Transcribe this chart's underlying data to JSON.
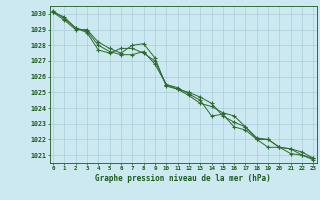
{
  "x": [
    0,
    1,
    2,
    3,
    4,
    5,
    6,
    7,
    8,
    9,
    10,
    11,
    12,
    13,
    14,
    15,
    16,
    17,
    18,
    19,
    20,
    21,
    22,
    23
  ],
  "series1": [
    1030.1,
    1029.8,
    1029.1,
    1028.8,
    1027.7,
    1027.5,
    1027.8,
    1027.8,
    1027.5,
    1027.0,
    1025.5,
    1025.2,
    1025.0,
    1024.7,
    1024.3,
    1023.5,
    1023.1,
    1022.8,
    1022.0,
    1022.0,
    1021.5,
    1021.4,
    1021.2,
    1020.8
  ],
  "series2": [
    1030.2,
    1029.7,
    1029.1,
    1028.9,
    1028.0,
    1027.6,
    1027.4,
    1027.4,
    1027.6,
    1026.8,
    1025.5,
    1025.3,
    1024.9,
    1024.5,
    1023.5,
    1023.6,
    1022.8,
    1022.6,
    1022.0,
    1021.5,
    1021.5,
    1021.1,
    1021.0,
    1020.8
  ],
  "series3": [
    1030.1,
    1029.6,
    1029.0,
    1029.0,
    1028.2,
    1027.8,
    1027.5,
    1028.0,
    1028.1,
    1027.2,
    1025.4,
    1025.2,
    1024.8,
    1024.3,
    1024.1,
    1023.7,
    1023.5,
    1022.8,
    1022.1,
    1022.0,
    1021.5,
    1021.4,
    1021.0,
    1020.7
  ],
  "line_color": "#2d6a2d",
  "bg_color": "#cce8f0",
  "grid_color": "#a0c8d8",
  "label_color": "#1a5c1a",
  "title": "Graphe pression niveau de la mer (hPa)",
  "ylim": [
    1020.5,
    1030.5
  ],
  "yticks": [
    1021,
    1022,
    1023,
    1024,
    1025,
    1026,
    1027,
    1028,
    1029,
    1030
  ],
  "xlim": [
    -0.3,
    23.3
  ],
  "xticks": [
    0,
    1,
    2,
    3,
    4,
    5,
    6,
    7,
    8,
    9,
    10,
    11,
    12,
    13,
    14,
    15,
    16,
    17,
    18,
    19,
    20,
    21,
    22,
    23
  ]
}
